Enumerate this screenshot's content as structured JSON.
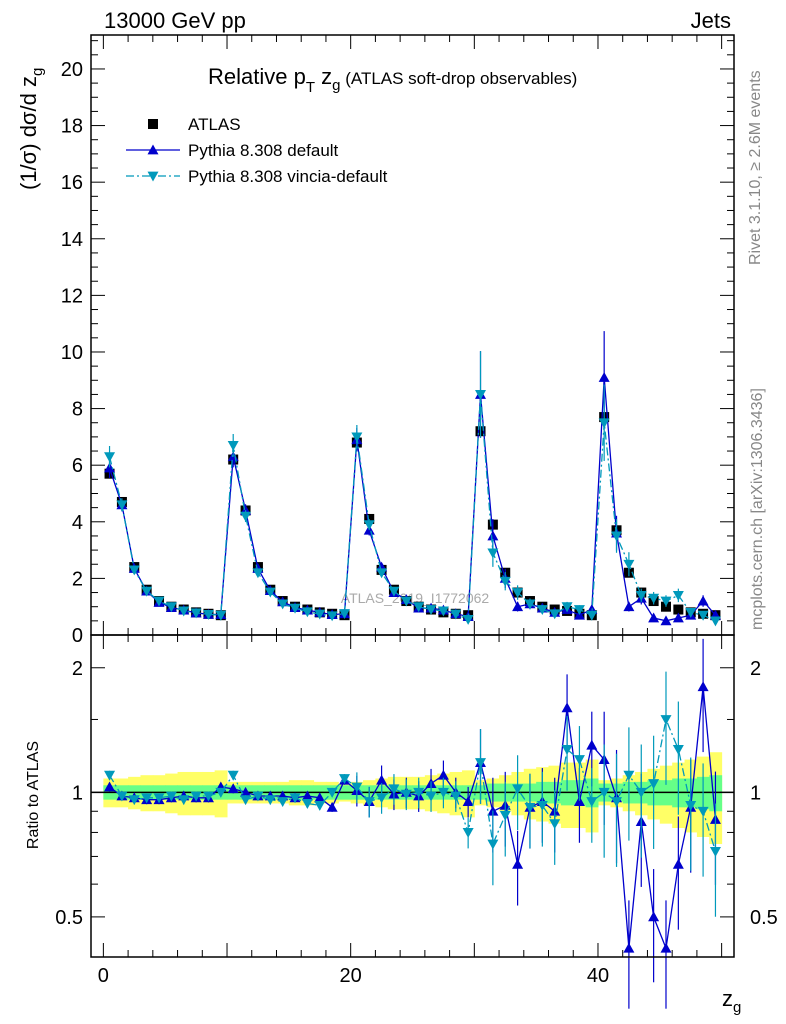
{
  "header": {
    "left": "13000 GeV pp",
    "right": "Jets"
  },
  "title": {
    "main": "Relative p",
    "sub1": "T",
    "mid": " z",
    "sub2": "g",
    "tail": " (ATLAS soft-drop observables)"
  },
  "side_labels": {
    "rivet": "Rivet 3.1.10, ≥ 2.6M events",
    "mcplots": "mcplots.cern.ch [arXiv:1306.3436]"
  },
  "watermark": "ATLAS_2019_I1772062",
  "chart_data": [
    {
      "type": "scatter",
      "panel": "main",
      "ylabel": "(1/σ) dσ/d z",
      "ylabel_sub": "g",
      "ylim": [
        0,
        21.2
      ],
      "xlim": [
        -1,
        51
      ],
      "yticks": [
        0,
        2,
        4,
        6,
        8,
        10,
        12,
        14,
        16,
        18,
        20
      ],
      "legend": "top-left",
      "x": [
        0.5,
        1.5,
        2.5,
        3.5,
        4.5,
        5.5,
        6.5,
        7.5,
        8.5,
        9.5,
        10.5,
        11.5,
        12.5,
        13.5,
        14.5,
        15.5,
        16.5,
        17.5,
        18.5,
        19.5,
        20.5,
        21.5,
        22.5,
        23.5,
        24.5,
        25.5,
        26.5,
        27.5,
        28.5,
        29.5,
        30.5,
        31.5,
        32.5,
        33.5,
        34.5,
        35.5,
        36.5,
        37.5,
        38.5,
        39.5,
        40.5,
        41.5,
        42.5,
        43.5,
        44.5,
        45.5,
        46.5,
        47.5,
        48.5,
        49.5
      ],
      "series": [
        {
          "name": "ATLAS",
          "color": "#000000",
          "marker": "square",
          "values": [
            5.7,
            4.7,
            2.4,
            1.6,
            1.2,
            1.0,
            0.9,
            0.8,
            0.75,
            0.7,
            6.2,
            4.4,
            2.4,
            1.6,
            1.2,
            1.0,
            0.9,
            0.8,
            0.75,
            0.7,
            6.8,
            4.1,
            2.3,
            1.6,
            1.2,
            1.0,
            0.9,
            0.8,
            0.75,
            0.7,
            7.2,
            3.9,
            2.2,
            1.5,
            1.2,
            1.0,
            0.9,
            0.85,
            0.75,
            0.7,
            7.7,
            3.7,
            2.2,
            1.5,
            1.2,
            1.0,
            0.9,
            0.8,
            0.75,
            0.7
          ]
        },
        {
          "name": "Pythia 8.308 default",
          "color": "#0000cc",
          "marker": "triangle-up",
          "line": "solid",
          "values": [
            5.9,
            4.6,
            2.35,
            1.55,
            1.15,
            0.97,
            0.88,
            0.78,
            0.73,
            0.72,
            6.3,
            4.4,
            2.35,
            1.57,
            1.17,
            0.97,
            0.88,
            0.8,
            0.72,
            0.75,
            6.9,
            3.7,
            2.4,
            1.5,
            1.25,
            0.95,
            0.95,
            0.88,
            0.75,
            0.65,
            8.5,
            3.5,
            2.0,
            1.0,
            1.1,
            0.95,
            0.8,
            0.9,
            0.7,
            0.9,
            9.1,
            3.6,
            1.0,
            1.3,
            0.6,
            0.5,
            0.6,
            0.7,
            1.2,
            0.7
          ]
        },
        {
          "name": "Pythia 8.308 vincia-default",
          "color": "#0099bb",
          "marker": "triangle-down",
          "line": "dashdot",
          "values": [
            6.3,
            4.6,
            2.3,
            1.55,
            1.2,
            1.0,
            0.85,
            0.78,
            0.73,
            0.7,
            6.7,
            4.2,
            2.2,
            1.52,
            1.1,
            0.95,
            0.82,
            0.74,
            0.68,
            0.76,
            7.0,
            3.9,
            2.2,
            1.55,
            1.2,
            1.0,
            0.9,
            0.85,
            0.74,
            0.55,
            8.5,
            2.9,
            1.9,
            1.5,
            1.1,
            0.9,
            0.75,
            1.0,
            0.9,
            0.7,
            7.5,
            3.5,
            2.5,
            1.4,
            1.3,
            1.2,
            1.4,
            0.8,
            0.7,
            0.5
          ]
        }
      ]
    },
    {
      "type": "scatter",
      "panel": "ratio",
      "ylabel": "Ratio to ATLAS",
      "xlabel": "z",
      "xlabel_sub": "g",
      "ylim": [
        0.4,
        2.4
      ],
      "log_y": true,
      "yticks": [
        0.5,
        1,
        2
      ],
      "xticks": [
        0,
        20,
        40
      ],
      "reference": 1,
      "band_inner_color": "#66ff88",
      "band_outer_color": "#ffff66",
      "band_inner": [
        0.04,
        0.04,
        0.04,
        0.04,
        0.04,
        0.04,
        0.04,
        0.04,
        0.04,
        0.04,
        0.04,
        0.04,
        0.04,
        0.04,
        0.04,
        0.04,
        0.04,
        0.04,
        0.04,
        0.04,
        0.04,
        0.04,
        0.04,
        0.04,
        0.04,
        0.04,
        0.04,
        0.04,
        0.04,
        0.04,
        0.04,
        0.05,
        0.05,
        0.05,
        0.05,
        0.06,
        0.06,
        0.07,
        0.07,
        0.08,
        0.05,
        0.05,
        0.06,
        0.06,
        0.07,
        0.07,
        0.08,
        0.08,
        0.09,
        0.1
      ],
      "band_outer": [
        0.08,
        0.08,
        0.09,
        0.1,
        0.1,
        0.11,
        0.12,
        0.12,
        0.12,
        0.13,
        0.06,
        0.06,
        0.06,
        0.06,
        0.06,
        0.07,
        0.07,
        0.06,
        0.06,
        0.05,
        0.06,
        0.07,
        0.08,
        0.09,
        0.09,
        0.09,
        0.1,
        0.11,
        0.12,
        0.13,
        0.07,
        0.08,
        0.1,
        0.12,
        0.14,
        0.15,
        0.16,
        0.18,
        0.18,
        0.2,
        0.07,
        0.08,
        0.1,
        0.12,
        0.14,
        0.16,
        0.18,
        0.2,
        0.22,
        0.25
      ],
      "series": [
        {
          "name": "Pythia 8.308 default",
          "color": "#0000cc",
          "values": [
            1.03,
            0.98,
            0.97,
            0.96,
            0.96,
            0.97,
            0.98,
            0.97,
            0.97,
            1.03,
            1.02,
            1.0,
            0.98,
            0.98,
            0.98,
            0.97,
            0.98,
            0.97,
            0.92,
            1.07,
            1.01,
            0.95,
            1.07,
            0.99,
            1.0,
            0.98,
            1.05,
            1.1,
            1.0,
            0.95,
            1.18,
            0.9,
            0.93,
            0.67,
            0.92,
            0.95,
            0.9,
            1.6,
            0.95,
            1.3,
            1.2,
            0.97,
            0.42,
            0.85,
            0.5,
            0.42,
            0.67,
            0.92,
            1.8,
            0.86
          ]
        },
        {
          "name": "Pythia 8.308 vincia-default",
          "color": "#0099bb",
          "values": [
            1.1,
            0.98,
            0.96,
            0.97,
            0.97,
            0.98,
            0.96,
            0.98,
            0.98,
            1.0,
            1.1,
            0.96,
            0.98,
            0.96,
            0.95,
            0.97,
            0.94,
            0.93,
            1.0,
            1.08,
            1.03,
            0.95,
            0.97,
            1.02,
            0.99,
            1.0,
            0.98,
            1.0,
            0.98,
            0.8,
            1.18,
            0.75,
            0.88,
            1.02,
            0.92,
            0.93,
            0.84,
            1.27,
            1.2,
            0.95,
            1.0,
            0.95,
            1.1,
            1.0,
            1.05,
            1.5,
            1.27,
            0.93,
            0.9,
            0.72
          ]
        }
      ]
    }
  ]
}
